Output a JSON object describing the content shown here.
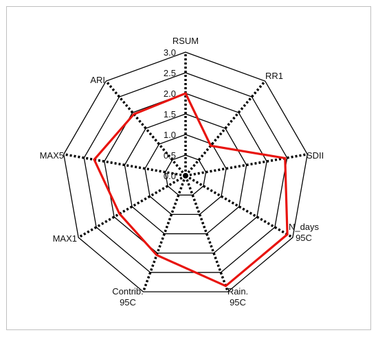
{
  "chart_data": {
    "type": "radar",
    "title": "",
    "axes": [
      {
        "label": [
          "RSUM"
        ]
      },
      {
        "label": [
          "RR1"
        ]
      },
      {
        "label": [
          "SDII"
        ]
      },
      {
        "label": [
          "N_days",
          "95C"
        ]
      },
      {
        "label": [
          "Rain.",
          "95C"
        ]
      },
      {
        "label": [
          "Contrib.",
          "95C"
        ]
      },
      {
        "label": [
          "MAX1"
        ]
      },
      {
        "label": [
          "MAX5"
        ]
      },
      {
        "label": [
          "ARI"
        ]
      }
    ],
    "rlim": [
      0,
      3.0
    ],
    "ticks": [
      0.0,
      0.5,
      1.0,
      1.5,
      2.0,
      2.5,
      3.0
    ],
    "tick_labels": [
      "0.0",
      "0.5",
      "1.0",
      "1.5",
      "2.0",
      "2.5",
      "3.0"
    ],
    "grid": true,
    "series": [
      {
        "color": "#e8140f",
        "values": [
          2.0,
          0.95,
          2.45,
          2.85,
          2.85,
          2.05,
          1.85,
          2.25,
          1.95
        ]
      }
    ]
  }
}
